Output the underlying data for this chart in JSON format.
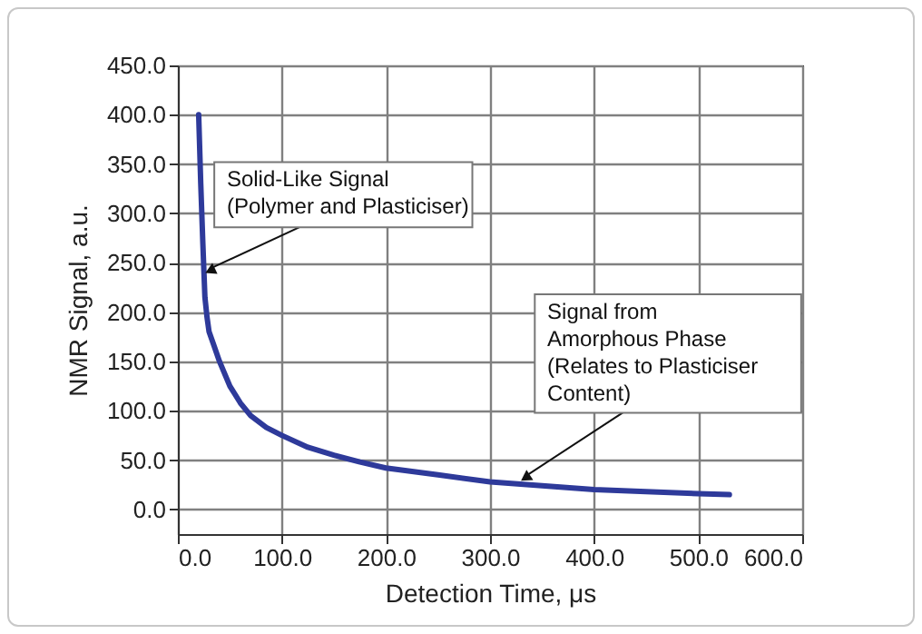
{
  "chart_data": {
    "type": "line",
    "xlabel": "Detection Time, μs",
    "ylabel": "NMR Signal, a.u.",
    "x": [
      20,
      22,
      24,
      26,
      28,
      30,
      35,
      40,
      50,
      60,
      70,
      85,
      100,
      125,
      150,
      175,
      200,
      250,
      300,
      350,
      400,
      450,
      500,
      530
    ],
    "series": [
      {
        "color": "#2e3a9a",
        "values": [
          400,
          330,
          270,
          215,
          195,
          180,
          165,
          150,
          125,
          108,
          95,
          83,
          75,
          63,
          55,
          48,
          42,
          35,
          28,
          24,
          20,
          18,
          16,
          15
        ]
      }
    ],
    "xlim": [
      0,
      600
    ],
    "xticks": [
      {
        "value": 0,
        "label": "0.0"
      },
      {
        "value": 100,
        "label": "100.0"
      },
      {
        "value": 200,
        "label": "200.0"
      },
      {
        "value": 300,
        "label": "300.0"
      },
      {
        "value": 400,
        "label": "400.0"
      },
      {
        "value": 500,
        "label": "500.0"
      },
      {
        "value": 600,
        "label": "600.0"
      }
    ],
    "ylim": [
      -25,
      450
    ],
    "yticks": [
      {
        "value": 0,
        "label": "0.0"
      },
      {
        "value": 50,
        "label": "50.0"
      },
      {
        "value": 100,
        "label": "100.0"
      },
      {
        "value": 150,
        "label": "150.0"
      },
      {
        "value": 200,
        "label": "200.0"
      },
      {
        "value": 250,
        "label": "250.0"
      },
      {
        "value": 300,
        "label": "300.0"
      },
      {
        "value": 350,
        "label": "350.0"
      },
      {
        "value": 400,
        "label": "400.0"
      },
      {
        "value": 450,
        "label": "450.0"
      }
    ],
    "grid": true,
    "marker": "none",
    "line_style": "solid",
    "annotations": [
      {
        "text": "Solid-Like Signal\n(Polymer and Plasticiser)",
        "x": 27,
        "y": 235
      },
      {
        "text": "Signal from\nAmorphous Phase\n(Relates to Plasticiser\nContent)",
        "x": 330,
        "y": 25
      }
    ]
  }
}
